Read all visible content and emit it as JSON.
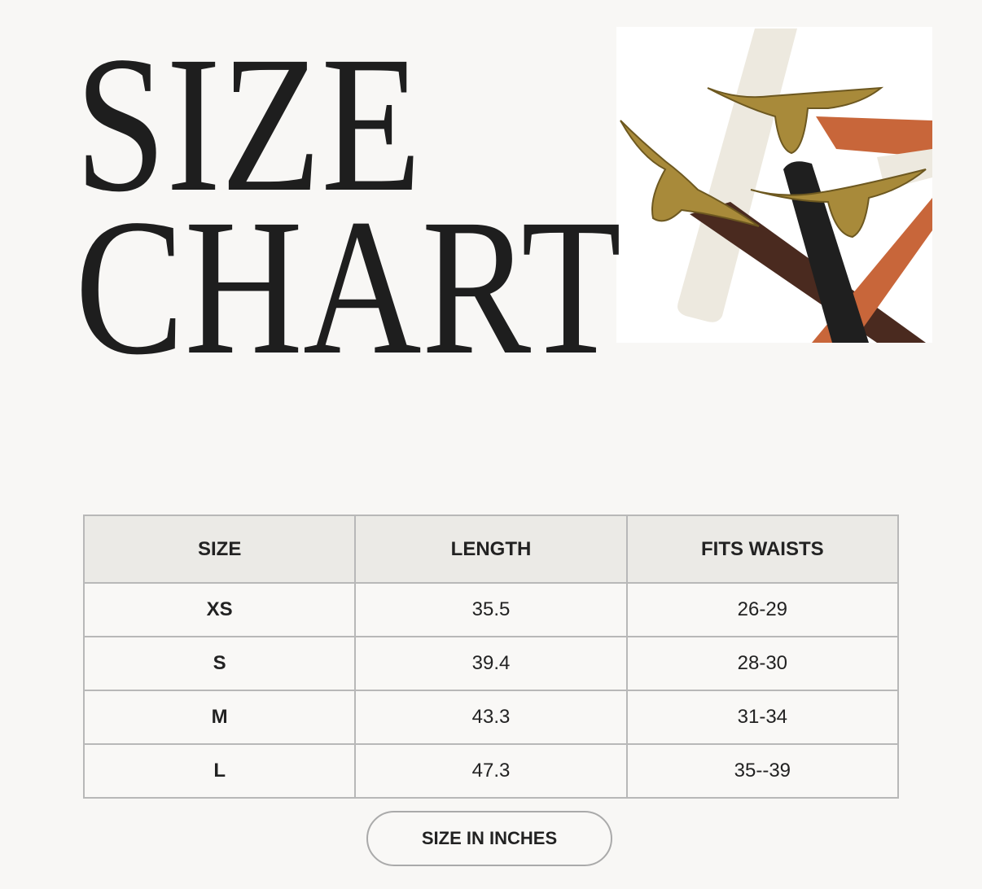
{
  "title": {
    "line1": "SIZE",
    "line2": "CHART"
  },
  "product_image": {
    "description_icon": "longhorn-belt-photo"
  },
  "table": {
    "headers": [
      "SIZE",
      "LENGTH",
      "FITS WAISTS"
    ],
    "rows": [
      [
        "XS",
        "35.5",
        "26-29"
      ],
      [
        "S",
        "39.4",
        "28-30"
      ],
      [
        "M",
        "43.3",
        "31-34"
      ],
      [
        "L",
        "47.3",
        "35--39"
      ]
    ]
  },
  "unit_button": "SIZE IN INCHES",
  "colors": {
    "background": "#f8f7f5",
    "header": "#ebeae6",
    "border": "#b8b8b8",
    "text": "#1e1e1e"
  }
}
